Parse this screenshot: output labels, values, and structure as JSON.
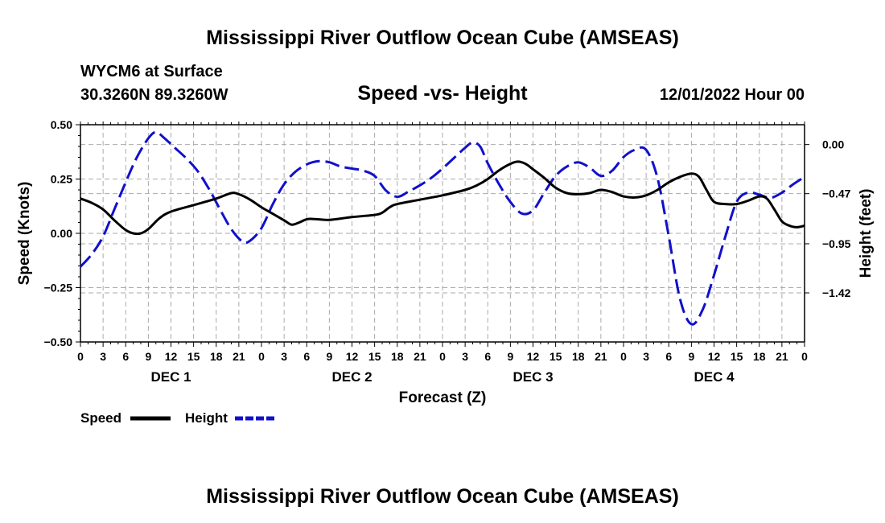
{
  "page": {
    "title_top": "Mississippi River Outflow Ocean Cube (AMSEAS)",
    "title_bottom": "Mississippi River Outflow Ocean Cube (AMSEAS)",
    "station": "WYCM6 at Surface",
    "location": "30.3260N  89.3260W",
    "datetime": "12/01/2022 Hour 00"
  },
  "chart_data": {
    "type": "line",
    "title": "Speed -vs- Height",
    "xlabel": "Forecast (Z)",
    "ylabel_left": "Speed (Knots)",
    "ylabel_right": "Height (feet)",
    "x_range_hours": [
      0,
      96
    ],
    "ylim_left": [
      -0.5,
      0.5
    ],
    "ylim_right": [
      -1.89,
      0.19
    ],
    "yticks_left": [
      0.5,
      0.25,
      0.0,
      -0.25,
      -0.5
    ],
    "yticks_left_labels": [
      "0.50",
      "0.25",
      "0.00",
      "−0.25",
      "−0.50"
    ],
    "yticks_right": [
      0.0,
      -0.47,
      -0.95,
      -1.42
    ],
    "yticks_right_labels": [
      "0.00",
      "−0.47",
      "−0.95",
      "−1.42"
    ],
    "x_tick_step_hours": 3,
    "x_tick_labels": [
      "0",
      "3",
      "6",
      "9",
      "12",
      "15",
      "18",
      "21",
      "0",
      "3",
      "6",
      "9",
      "12",
      "15",
      "18",
      "21",
      "0",
      "3",
      "6",
      "9",
      "12",
      "15",
      "18",
      "21",
      "0",
      "3",
      "6",
      "9",
      "12",
      "15",
      "18",
      "21",
      "0"
    ],
    "day_labels": [
      {
        "label": "DEC 1",
        "hour": 12
      },
      {
        "label": "DEC 2",
        "hour": 36
      },
      {
        "label": "DEC 3",
        "hour": 60
      },
      {
        "label": "DEC 4",
        "hour": 84
      }
    ],
    "grid": true,
    "series": [
      {
        "name": "Speed",
        "axis": "left",
        "color": "#000000",
        "dash": "solid",
        "points": [
          [
            0,
            0.16
          ],
          [
            1.5,
            0.14
          ],
          [
            3,
            0.11
          ],
          [
            4.5,
            0.06
          ],
          [
            6,
            0.015
          ],
          [
            7,
            0.0
          ],
          [
            8,
            0.0
          ],
          [
            9,
            0.02
          ],
          [
            10.5,
            0.07
          ],
          [
            12,
            0.1
          ],
          [
            15,
            0.13
          ],
          [
            18,
            0.16
          ],
          [
            20,
            0.185
          ],
          [
            21,
            0.18
          ],
          [
            22.5,
            0.155
          ],
          [
            24,
            0.12
          ],
          [
            25.5,
            0.09
          ],
          [
            27,
            0.06
          ],
          [
            28,
            0.04
          ],
          [
            29,
            0.05
          ],
          [
            30,
            0.065
          ],
          [
            31,
            0.066
          ],
          [
            33,
            0.062
          ],
          [
            36,
            0.075
          ],
          [
            39,
            0.085
          ],
          [
            40,
            0.095
          ],
          [
            41,
            0.12
          ],
          [
            42,
            0.135
          ],
          [
            45,
            0.155
          ],
          [
            48,
            0.175
          ],
          [
            51,
            0.2
          ],
          [
            52.5,
            0.22
          ],
          [
            54,
            0.25
          ],
          [
            55.5,
            0.29
          ],
          [
            57,
            0.32
          ],
          [
            58,
            0.33
          ],
          [
            59,
            0.32
          ],
          [
            60,
            0.295
          ],
          [
            61.5,
            0.255
          ],
          [
            63,
            0.21
          ],
          [
            64.5,
            0.185
          ],
          [
            66,
            0.18
          ],
          [
            67.5,
            0.185
          ],
          [
            69,
            0.2
          ],
          [
            70.5,
            0.19
          ],
          [
            72,
            0.17
          ],
          [
            73.5,
            0.165
          ],
          [
            75,
            0.175
          ],
          [
            76.5,
            0.2
          ],
          [
            78,
            0.235
          ],
          [
            79.5,
            0.26
          ],
          [
            81,
            0.275
          ],
          [
            82,
            0.26
          ],
          [
            83,
            0.2
          ],
          [
            84,
            0.145
          ],
          [
            85.5,
            0.135
          ],
          [
            87,
            0.135
          ],
          [
            88.5,
            0.15
          ],
          [
            90,
            0.17
          ],
          [
            91,
            0.16
          ],
          [
            92,
            0.11
          ],
          [
            93,
            0.055
          ],
          [
            94,
            0.035
          ],
          [
            95,
            0.028
          ],
          [
            96,
            0.035
          ]
        ]
      },
      {
        "name": "Height",
        "axis": "right",
        "color": "#1010cc",
        "dash": "dashed",
        "points": [
          [
            0,
            -1.17
          ],
          [
            1.5,
            -1.05
          ],
          [
            3,
            -0.88
          ],
          [
            4.5,
            -0.62
          ],
          [
            6,
            -0.36
          ],
          [
            7.5,
            -0.12
          ],
          [
            9,
            0.06
          ],
          [
            10,
            0.12
          ],
          [
            11,
            0.07
          ],
          [
            12.5,
            -0.03
          ],
          [
            14,
            -0.13
          ],
          [
            15.5,
            -0.25
          ],
          [
            17,
            -0.42
          ],
          [
            18.5,
            -0.62
          ],
          [
            20,
            -0.81
          ],
          [
            21.5,
            -0.93
          ],
          [
            22.5,
            -0.92
          ],
          [
            24,
            -0.8
          ],
          [
            25.5,
            -0.57
          ],
          [
            27,
            -0.38
          ],
          [
            28.5,
            -0.26
          ],
          [
            30,
            -0.19
          ],
          [
            31.5,
            -0.16
          ],
          [
            33,
            -0.17
          ],
          [
            34.5,
            -0.21
          ],
          [
            36,
            -0.23
          ],
          [
            37.5,
            -0.25
          ],
          [
            39,
            -0.3
          ],
          [
            40.5,
            -0.44
          ],
          [
            42,
            -0.5
          ],
          [
            43.5,
            -0.45
          ],
          [
            45,
            -0.39
          ],
          [
            46.5,
            -0.32
          ],
          [
            48,
            -0.23
          ],
          [
            49.5,
            -0.13
          ],
          [
            51,
            -0.03
          ],
          [
            52,
            0.02
          ],
          [
            53,
            -0.02
          ],
          [
            54,
            -0.18
          ],
          [
            55.5,
            -0.38
          ],
          [
            57,
            -0.55
          ],
          [
            58.5,
            -0.66
          ],
          [
            60,
            -0.63
          ],
          [
            61.5,
            -0.46
          ],
          [
            63,
            -0.3
          ],
          [
            64.5,
            -0.21
          ],
          [
            66,
            -0.17
          ],
          [
            67.5,
            -0.22
          ],
          [
            69,
            -0.3
          ],
          [
            70.5,
            -0.25
          ],
          [
            72,
            -0.12
          ],
          [
            73.5,
            -0.05
          ],
          [
            75,
            -0.05
          ],
          [
            76.5,
            -0.32
          ],
          [
            78,
            -0.88
          ],
          [
            79.5,
            -1.48
          ],
          [
            81,
            -1.72
          ],
          [
            82.5,
            -1.58
          ],
          [
            84,
            -1.25
          ],
          [
            85.5,
            -0.88
          ],
          [
            87,
            -0.55
          ],
          [
            88.5,
            -0.46
          ],
          [
            90,
            -0.48
          ],
          [
            91.5,
            -0.51
          ],
          [
            93,
            -0.46
          ],
          [
            94.5,
            -0.38
          ],
          [
            96,
            -0.31
          ]
        ]
      }
    ],
    "legend": [
      {
        "label": "Speed",
        "color": "#000000",
        "dash": "solid"
      },
      {
        "label": "Height",
        "color": "#1010cc",
        "dash": "dashed"
      }
    ]
  }
}
